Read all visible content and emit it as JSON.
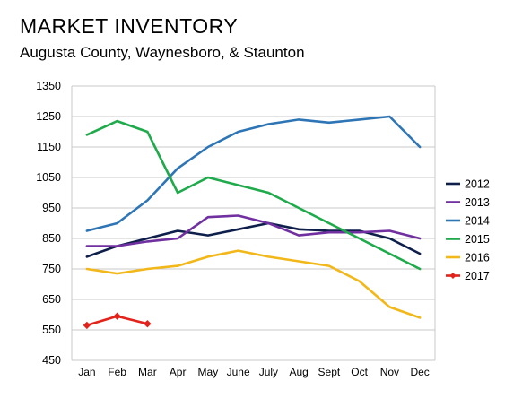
{
  "header": {
    "title": "MARKET INVENTORY",
    "subtitle": "Augusta County, Waynesboro, & Staunton"
  },
  "chart_data": {
    "type": "line",
    "title": "MARKET INVENTORY",
    "subtitle": "Augusta County, Waynesboro, & Staunton",
    "xlabel": "",
    "ylabel": "",
    "categories": [
      "Jan",
      "Feb",
      "Mar",
      "Apr",
      "May",
      "June",
      "July",
      "Aug",
      "Sept",
      "Oct",
      "Nov",
      "Dec"
    ],
    "ylim": [
      450,
      1350
    ],
    "yticks": [
      450,
      550,
      650,
      750,
      850,
      950,
      1050,
      1150,
      1250,
      1350
    ],
    "grid": true,
    "legend_position": "right",
    "series": [
      {
        "name": "2012",
        "color": "#0d1f4a",
        "marker": "none",
        "values": [
          790,
          825,
          850,
          875,
          860,
          880,
          900,
          880,
          875,
          875,
          850,
          800
        ]
      },
      {
        "name": "2013",
        "color": "#7030a0",
        "marker": "none",
        "values": [
          825,
          825,
          840,
          850,
          920,
          925,
          900,
          860,
          870,
          870,
          875,
          850
        ]
      },
      {
        "name": "2014",
        "color": "#2e75b6",
        "marker": "none",
        "values": [
          875,
          900,
          975,
          1080,
          1150,
          1200,
          1225,
          1240,
          1230,
          1240,
          1250,
          1150
        ]
      },
      {
        "name": "2015",
        "color": "#1faa4b",
        "marker": "none",
        "values": [
          1190,
          1235,
          1200,
          1000,
          1050,
          1025,
          1000,
          950,
          900,
          850,
          800,
          750
        ]
      },
      {
        "name": "2016",
        "color": "#f2b718",
        "marker": "none",
        "values": [
          750,
          735,
          750,
          760,
          790,
          810,
          790,
          775,
          760,
          710,
          625,
          590
        ]
      },
      {
        "name": "2017",
        "color": "#e3221b",
        "marker": "diamond",
        "values": [
          565,
          595,
          570,
          null,
          null,
          null,
          null,
          null,
          null,
          null,
          null,
          null
        ]
      }
    ]
  }
}
